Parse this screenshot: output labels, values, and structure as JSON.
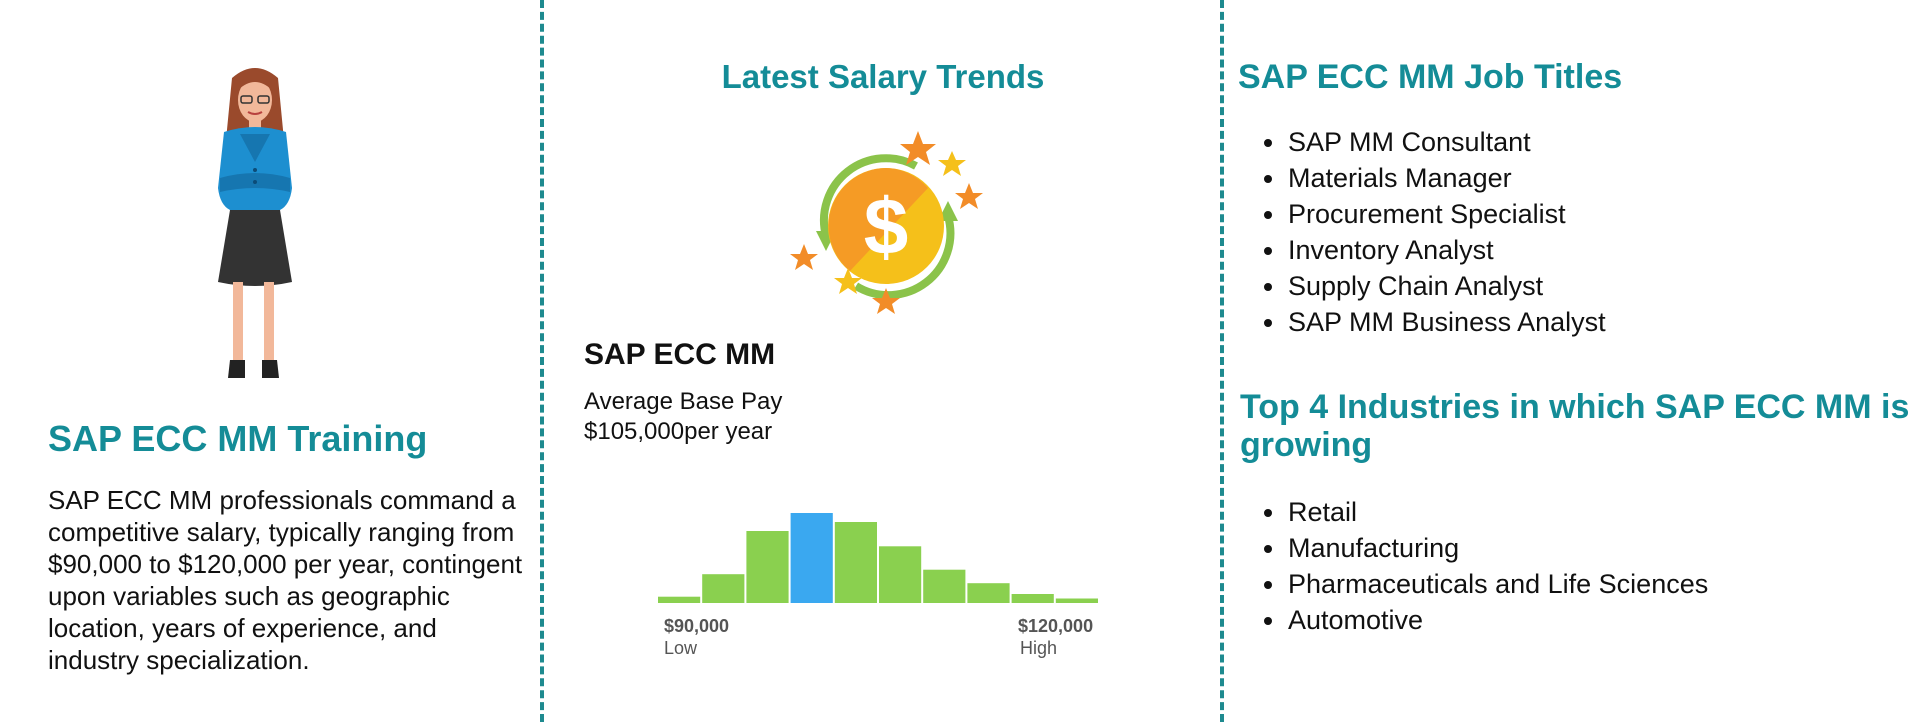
{
  "left": {
    "title": "SAP ECC MM Training",
    "body": "SAP ECC MM professionals command a competitive salary, typically ranging from $90,000 to $120,000 per year, contingent upon variables such as geographic location, years of experience, and industry specialization."
  },
  "middle": {
    "title": "Latest Salary Trends",
    "job_name": "SAP ECC MM",
    "pay_label": "Average Base Pay",
    "pay_value": "$105,000per year",
    "low_value": "$90,000",
    "low_caption": "Low",
    "high_value": "$120,000",
    "high_caption": "High",
    "coin_symbol": "$"
  },
  "right": {
    "jobs_title": "SAP ECC MM Job Titles",
    "jobs": [
      "SAP MM Consultant",
      "Materials Manager",
      "Procurement Specialist",
      "Inventory Analyst",
      "Supply Chain Analyst",
      "SAP MM Business Analyst"
    ],
    "industries_title": "Top 4 Industries in which SAP ECC MM is growing",
    "industries": [
      "Retail",
      "Manufacturing",
      "Pharmaceuticals and Life Sciences",
      "Automotive"
    ]
  },
  "chart_data": {
    "type": "bar",
    "relative_values": [
      0.07,
      0.32,
      0.8,
      1.0,
      0.9,
      0.63,
      0.37,
      0.22,
      0.1,
      0.05
    ],
    "highlight_index": 3,
    "range": [
      "$90,000",
      "$120,000"
    ]
  },
  "colors": {
    "accent": "#148c97",
    "bar": "#8ad04f",
    "bar_highlight": "#3aa8f0",
    "divider": "#1e8a8f"
  },
  "icons": [
    "woman-illustration",
    "dollar-coin-icon"
  ]
}
